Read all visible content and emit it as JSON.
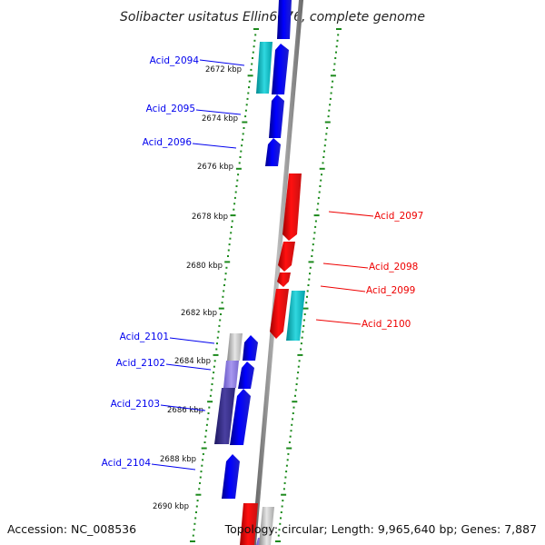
{
  "title": "Solibacter usitatus Ellin6076, complete genome",
  "footer": {
    "accession": "Accession: NC_008536",
    "info": "Topology: circular; Length: 9,965,640 bp; Genes: 7,887"
  },
  "colors": {
    "forward_gene": "#0000ee",
    "reverse_gene": "#ee0000",
    "rna_gene": "#00b0b8",
    "tick_green": "#1c8a1c",
    "backbone": "#7a7a7a"
  },
  "kbp_ticks": [
    "2672 kbp",
    "2674 kbp",
    "2676 kbp",
    "2678 kbp",
    "2680 kbp",
    "2682 kbp",
    "2684 kbp",
    "2686 kbp",
    "2688 kbp",
    "2690 kbp"
  ],
  "gene_labels": [
    {
      "text": "Acid_2094",
      "strand": "left"
    },
    {
      "text": "Acid_2095",
      "strand": "left"
    },
    {
      "text": "Acid_2096",
      "strand": "left"
    },
    {
      "text": "Acid_2097",
      "strand": "right"
    },
    {
      "text": "Acid_2098",
      "strand": "right"
    },
    {
      "text": "Acid_2099",
      "strand": "right"
    },
    {
      "text": "Acid_2100",
      "strand": "right"
    },
    {
      "text": "Acid_2101",
      "strand": "left"
    },
    {
      "text": "Acid_2102",
      "strand": "left"
    },
    {
      "text": "Acid_2103",
      "strand": "left"
    },
    {
      "text": "Acid_2104",
      "strand": "left"
    }
  ]
}
